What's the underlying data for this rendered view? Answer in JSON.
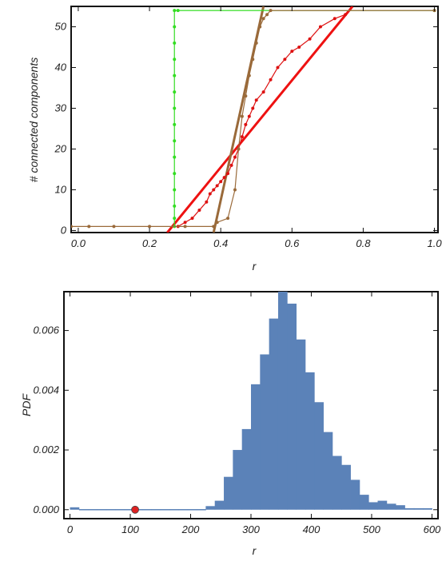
{
  "chart_data": [
    {
      "type": "line",
      "xlabel": "r",
      "ylabel": "# connected components",
      "xlim": [
        -0.02,
        1.01
      ],
      "ylim": [
        -0.5,
        55
      ],
      "xticks": [
        0.0,
        0.2,
        0.4,
        0.6,
        0.8,
        1.0
      ],
      "xtick_labels": [
        "0.0",
        "0.2",
        "0.4",
        "0.6",
        "0.8",
        "1.0"
      ],
      "yticks": [
        0,
        10,
        20,
        30,
        40,
        50
      ],
      "ytick_labels": [
        "0",
        "10",
        "20",
        "30",
        "40",
        "50"
      ],
      "grid": false,
      "series": [
        {
          "color": "#33dd22",
          "marker": "dot",
          "points": [
            [
              0.27,
              1
            ],
            [
              0.27,
              3
            ],
            [
              0.27,
              6
            ],
            [
              0.27,
              10
            ],
            [
              0.27,
              14
            ],
            [
              0.27,
              18
            ],
            [
              0.27,
              22
            ],
            [
              0.27,
              26
            ],
            [
              0.27,
              30
            ],
            [
              0.27,
              34
            ],
            [
              0.27,
              38
            ],
            [
              0.27,
              42
            ],
            [
              0.27,
              46
            ],
            [
              0.27,
              50
            ],
            [
              0.27,
              54
            ],
            [
              0.28,
              54
            ],
            [
              1.0,
              54
            ]
          ]
        },
        {
          "color": "#dd1111",
          "marker": "dot",
          "points": [
            [
              0.28,
              1
            ],
            [
              0.3,
              2
            ],
            [
              0.32,
              3
            ],
            [
              0.34,
              5
            ],
            [
              0.36,
              7
            ],
            [
              0.37,
              9
            ],
            [
              0.38,
              10
            ],
            [
              0.39,
              11
            ],
            [
              0.4,
              12
            ],
            [
              0.41,
              13
            ],
            [
              0.42,
              14
            ],
            [
              0.43,
              16
            ],
            [
              0.44,
              18
            ],
            [
              0.45,
              20
            ],
            [
              0.46,
              23
            ],
            [
              0.47,
              26
            ],
            [
              0.48,
              28
            ],
            [
              0.49,
              30
            ],
            [
              0.5,
              32
            ],
            [
              0.52,
              34
            ],
            [
              0.54,
              37
            ],
            [
              0.56,
              40
            ],
            [
              0.58,
              42
            ],
            [
              0.6,
              44
            ],
            [
              0.62,
              45
            ],
            [
              0.65,
              47
            ],
            [
              0.68,
              50
            ],
            [
              0.72,
              52
            ],
            [
              0.75,
              53
            ]
          ]
        },
        {
          "color": "#9a6a3a",
          "marker": "dot",
          "points": [
            [
              -0.02,
              1
            ],
            [
              0.03,
              1
            ],
            [
              0.1,
              1
            ],
            [
              0.2,
              1
            ],
            [
              0.3,
              1
            ],
            [
              0.38,
              1
            ],
            [
              0.39,
              2
            ],
            [
              0.42,
              3
            ],
            [
              0.44,
              10
            ],
            [
              0.45,
              20
            ],
            [
              0.46,
              28
            ],
            [
              0.47,
              33
            ],
            [
              0.48,
              38
            ],
            [
              0.49,
              42
            ],
            [
              0.5,
              46
            ],
            [
              0.51,
              50
            ],
            [
              0.52,
              52
            ],
            [
              0.53,
              53
            ],
            [
              0.54,
              54
            ],
            [
              1.0,
              54
            ]
          ]
        }
      ],
      "fit_lines": [
        {
          "color": "#ee1111",
          "points": [
            [
              0.25,
              -0.5
            ],
            [
              0.77,
              55
            ]
          ]
        },
        {
          "color": "#9a6a3a",
          "points": [
            [
              0.38,
              -0.5
            ],
            [
              0.52,
              55
            ]
          ]
        }
      ]
    },
    {
      "type": "bar",
      "xlabel": "r",
      "ylabel": "PDF",
      "xlim": [
        -10,
        610
      ],
      "ylim": [
        -0.0003,
        0.0073
      ],
      "xticks": [
        0,
        100,
        200,
        300,
        400,
        500,
        600
      ],
      "xtick_labels": [
        "0",
        "100",
        "200",
        "300",
        "400",
        "500",
        "600"
      ],
      "yticks": [
        0,
        0.002,
        0.004,
        0.006
      ],
      "ytick_labels": [
        "0.000",
        "0.002",
        "0.004",
        "0.006"
      ],
      "grid": false,
      "fill_color": "#5b82b8",
      "bin_width": 15,
      "bins": [
        {
          "x": 0,
          "value": 8e-05
        },
        {
          "x": 15,
          "value": 2e-05
        },
        {
          "x": 30,
          "value": 2e-05
        },
        {
          "x": 45,
          "value": 2e-05
        },
        {
          "x": 60,
          "value": 2e-05
        },
        {
          "x": 75,
          "value": 2e-05
        },
        {
          "x": 90,
          "value": 2e-05
        },
        {
          "x": 105,
          "value": 2e-05
        },
        {
          "x": 120,
          "value": 2e-05
        },
        {
          "x": 135,
          "value": 2e-05
        },
        {
          "x": 150,
          "value": 2e-05
        },
        {
          "x": 165,
          "value": 2e-05
        },
        {
          "x": 180,
          "value": 2e-05
        },
        {
          "x": 195,
          "value": 2e-05
        },
        {
          "x": 210,
          "value": 2e-05
        },
        {
          "x": 225,
          "value": 0.00012
        },
        {
          "x": 240,
          "value": 0.0003
        },
        {
          "x": 255,
          "value": 0.0011
        },
        {
          "x": 270,
          "value": 0.002
        },
        {
          "x": 285,
          "value": 0.0027
        },
        {
          "x": 300,
          "value": 0.0042
        },
        {
          "x": 315,
          "value": 0.0052
        },
        {
          "x": 330,
          "value": 0.0064
        },
        {
          "x": 345,
          "value": 0.0073
        },
        {
          "x": 360,
          "value": 0.0069
        },
        {
          "x": 375,
          "value": 0.0057
        },
        {
          "x": 390,
          "value": 0.0046
        },
        {
          "x": 405,
          "value": 0.0036
        },
        {
          "x": 420,
          "value": 0.0026
        },
        {
          "x": 435,
          "value": 0.0018
        },
        {
          "x": 450,
          "value": 0.0015
        },
        {
          "x": 465,
          "value": 0.001
        },
        {
          "x": 480,
          "value": 0.0005
        },
        {
          "x": 495,
          "value": 0.00025
        },
        {
          "x": 510,
          "value": 0.0003
        },
        {
          "x": 525,
          "value": 0.0002
        },
        {
          "x": 540,
          "value": 0.00015
        },
        {
          "x": 555,
          "value": 5e-05
        },
        {
          "x": 570,
          "value": 5e-05
        },
        {
          "x": 585,
          "value": 5e-05
        }
      ],
      "highlight_point": {
        "x": 108,
        "y": 0.0,
        "color": "#dd2222"
      }
    }
  ]
}
